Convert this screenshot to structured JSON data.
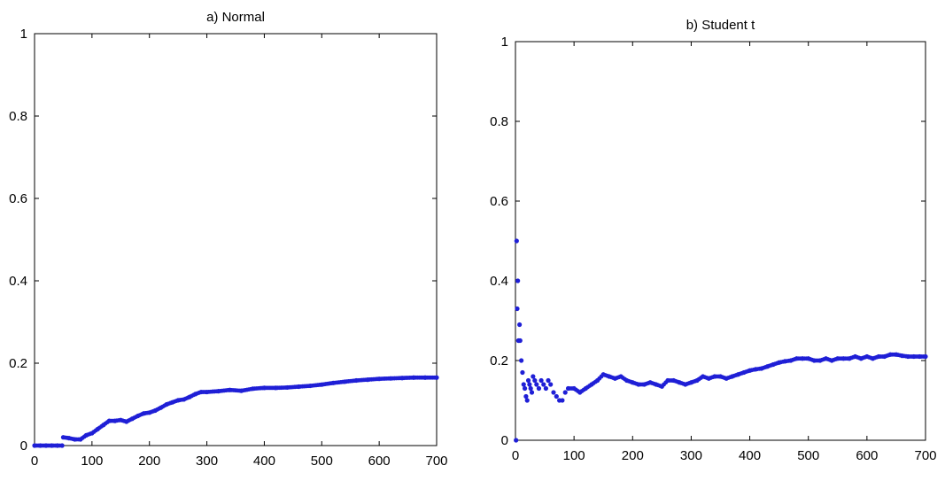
{
  "chart_data": [
    {
      "type": "scatter",
      "title": "a) Normal",
      "xlabel": "",
      "ylabel": "",
      "xlim": [
        0,
        700
      ],
      "ylim": [
        0,
        1
      ],
      "xticks": [
        0,
        100,
        200,
        300,
        400,
        500,
        600,
        700
      ],
      "yticks": [
        0,
        0.2,
        0.4,
        0.6,
        0.8,
        1
      ],
      "xtick_labels": [
        "0",
        "100",
        "200",
        "300",
        "400",
        "500",
        "600",
        "700"
      ],
      "ytick_labels": [
        "0",
        "0.2",
        "0.4",
        "0.6",
        "0.8",
        "1"
      ],
      "grid": false,
      "marker_color": "#1f1fd6",
      "series": [
        {
          "points": [
            [
              0,
              0
            ],
            [
              10,
              0
            ],
            [
              20,
              0
            ],
            [
              30,
              0
            ],
            [
              40,
              0
            ],
            [
              48,
              0
            ],
            [
              50,
              0.02
            ],
            [
              60,
              0.018
            ],
            [
              70,
              0.015
            ],
            [
              80,
              0.015
            ],
            [
              90,
              0.025
            ],
            [
              100,
              0.03
            ],
            [
              110,
              0.04
            ],
            [
              120,
              0.05
            ],
            [
              130,
              0.06
            ],
            [
              140,
              0.06
            ],
            [
              150,
              0.062
            ],
            [
              160,
              0.058
            ],
            [
              170,
              0.065
            ],
            [
              180,
              0.072
            ],
            [
              190,
              0.078
            ],
            [
              200,
              0.08
            ],
            [
              210,
              0.085
            ],
            [
              220,
              0.092
            ],
            [
              230,
              0.1
            ],
            [
              240,
              0.105
            ],
            [
              250,
              0.11
            ],
            [
              260,
              0.112
            ],
            [
              270,
              0.118
            ],
            [
              280,
              0.125
            ],
            [
              290,
              0.13
            ],
            [
              300,
              0.13
            ],
            [
              320,
              0.132
            ],
            [
              340,
              0.135
            ],
            [
              360,
              0.133
            ],
            [
              380,
              0.138
            ],
            [
              400,
              0.14
            ],
            [
              420,
              0.14
            ],
            [
              440,
              0.141
            ],
            [
              460,
              0.143
            ],
            [
              480,
              0.145
            ],
            [
              500,
              0.148
            ],
            [
              520,
              0.152
            ],
            [
              540,
              0.155
            ],
            [
              560,
              0.158
            ],
            [
              580,
              0.16
            ],
            [
              600,
              0.162
            ],
            [
              620,
              0.163
            ],
            [
              640,
              0.164
            ],
            [
              660,
              0.165
            ],
            [
              680,
              0.165
            ],
            [
              700,
              0.165
            ]
          ]
        }
      ]
    },
    {
      "type": "scatter",
      "title": "b) Student t",
      "xlabel": "",
      "ylabel": "",
      "xlim": [
        0,
        700
      ],
      "ylim": [
        0,
        1
      ],
      "xticks": [
        0,
        100,
        200,
        300,
        400,
        500,
        600,
        700
      ],
      "yticks": [
        0,
        0.2,
        0.4,
        0.6,
        0.8,
        1
      ],
      "xtick_labels": [
        "0",
        "100",
        "200",
        "300",
        "400",
        "500",
        "600",
        "700"
      ],
      "ytick_labels": [
        "0",
        "0.2",
        "0.4",
        "0.6",
        "0.8",
        "1"
      ],
      "grid": false,
      "marker_color": "#1f1fd6",
      "series": [
        {
          "points": [
            [
              1,
              0
            ],
            [
              2,
              0.5
            ],
            [
              3,
              0.33
            ],
            [
              4,
              0.4
            ],
            [
              5,
              0.25
            ],
            [
              6,
              0.25
            ],
            [
              7,
              0.29
            ],
            [
              8,
              0.25
            ],
            [
              10,
              0.2
            ],
            [
              12,
              0.17
            ],
            [
              14,
              0.14
            ],
            [
              16,
              0.13
            ],
            [
              18,
              0.11
            ],
            [
              20,
              0.1
            ],
            [
              22,
              0.15
            ],
            [
              24,
              0.14
            ],
            [
              26,
              0.13
            ],
            [
              28,
              0.12
            ],
            [
              30,
              0.16
            ],
            [
              33,
              0.15
            ],
            [
              36,
              0.14
            ],
            [
              40,
              0.13
            ],
            [
              44,
              0.15
            ],
            [
              48,
              0.14
            ],
            [
              52,
              0.13
            ],
            [
              56,
              0.15
            ],
            [
              60,
              0.14
            ],
            [
              65,
              0.12
            ],
            [
              70,
              0.11
            ],
            [
              75,
              0.1
            ],
            [
              80,
              0.1
            ],
            [
              85,
              0.12
            ],
            [
              90,
              0.13
            ],
            [
              100,
              0.13
            ],
            [
              110,
              0.12
            ],
            [
              120,
              0.13
            ],
            [
              130,
              0.14
            ],
            [
              140,
              0.15
            ],
            [
              150,
              0.165
            ],
            [
              160,
              0.16
            ],
            [
              170,
              0.155
            ],
            [
              180,
              0.16
            ],
            [
              190,
              0.15
            ],
            [
              200,
              0.145
            ],
            [
              210,
              0.14
            ],
            [
              220,
              0.14
            ],
            [
              230,
              0.145
            ],
            [
              240,
              0.14
            ],
            [
              250,
              0.135
            ],
            [
              260,
              0.15
            ],
            [
              270,
              0.15
            ],
            [
              280,
              0.145
            ],
            [
              290,
              0.14
            ],
            [
              300,
              0.145
            ],
            [
              310,
              0.15
            ],
            [
              320,
              0.16
            ],
            [
              330,
              0.155
            ],
            [
              340,
              0.16
            ],
            [
              350,
              0.16
            ],
            [
              360,
              0.155
            ],
            [
              370,
              0.16
            ],
            [
              380,
              0.165
            ],
            [
              390,
              0.17
            ],
            [
              400,
              0.175
            ],
            [
              410,
              0.178
            ],
            [
              420,
              0.18
            ],
            [
              430,
              0.185
            ],
            [
              440,
              0.19
            ],
            [
              450,
              0.195
            ],
            [
              460,
              0.198
            ],
            [
              470,
              0.2
            ],
            [
              480,
              0.205
            ],
            [
              490,
              0.205
            ],
            [
              500,
              0.205
            ],
            [
              510,
              0.2
            ],
            [
              520,
              0.2
            ],
            [
              530,
              0.205
            ],
            [
              540,
              0.2
            ],
            [
              550,
              0.205
            ],
            [
              560,
              0.205
            ],
            [
              570,
              0.205
            ],
            [
              580,
              0.21
            ],
            [
              590,
              0.205
            ],
            [
              600,
              0.21
            ],
            [
              610,
              0.205
            ],
            [
              620,
              0.21
            ],
            [
              630,
              0.21
            ],
            [
              640,
              0.215
            ],
            [
              650,
              0.215
            ],
            [
              660,
              0.212
            ],
            [
              670,
              0.21
            ],
            [
              680,
              0.21
            ],
            [
              690,
              0.21
            ],
            [
              700,
              0.21
            ]
          ]
        }
      ]
    }
  ]
}
